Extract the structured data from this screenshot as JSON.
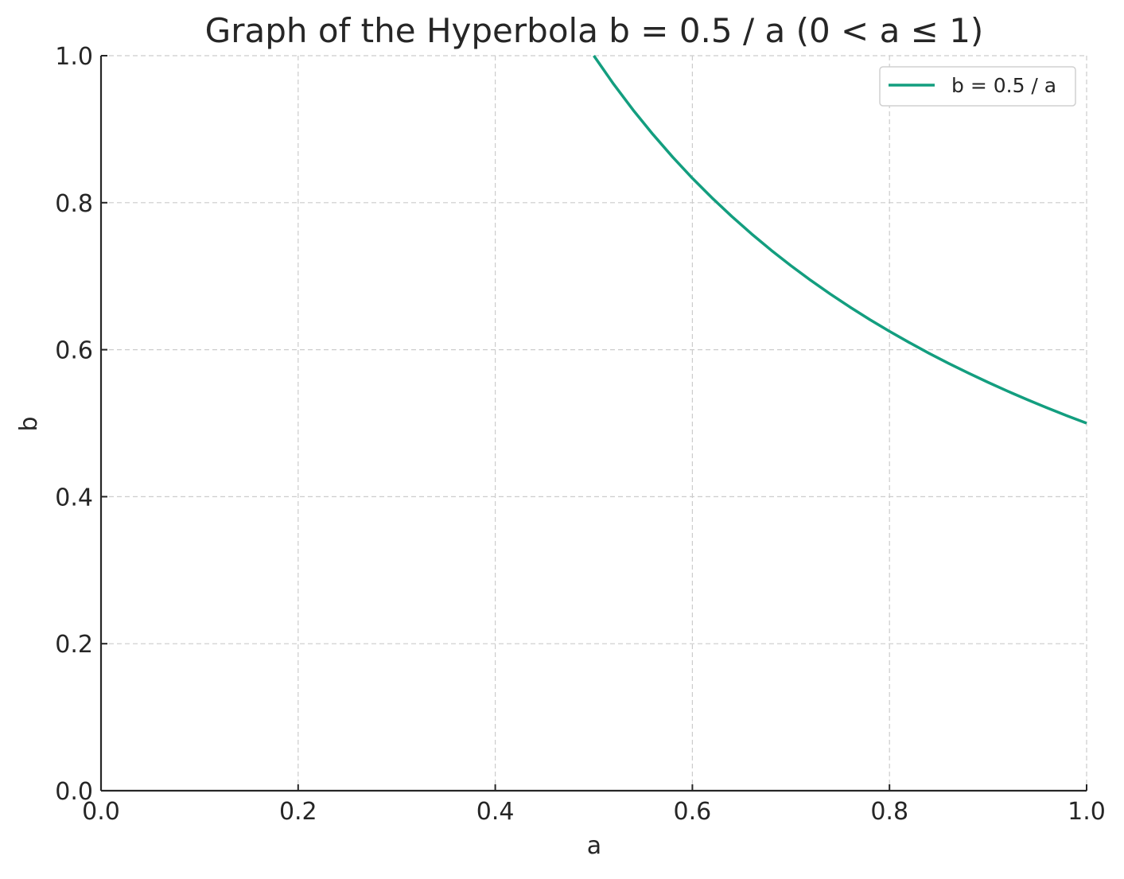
{
  "chart_data": {
    "type": "line",
    "title": "Graph of the Hyperbola b = 0.5 / a (0 < a ≤ 1)",
    "xlabel": "a",
    "ylabel": "b",
    "xlim": [
      0.0,
      1.0
    ],
    "ylim": [
      0.0,
      1.0
    ],
    "xticks": [
      0.0,
      0.2,
      0.4,
      0.6,
      0.8,
      1.0
    ],
    "yticks": [
      0.0,
      0.2,
      0.4,
      0.6,
      0.8,
      1.0
    ],
    "x_tick_labels": [
      "0.0",
      "0.2",
      "0.4",
      "0.6",
      "0.8",
      "1.0"
    ],
    "y_tick_labels": [
      "0.0",
      "0.2",
      "0.4",
      "0.6",
      "0.8",
      "1.0"
    ],
    "grid": true,
    "legend_position": "top-right",
    "series": [
      {
        "name": "b = 0.5 / a",
        "color": "#139e7f",
        "x": [
          0.5,
          0.52,
          0.54,
          0.56,
          0.58,
          0.6,
          0.62,
          0.64,
          0.66,
          0.68,
          0.7,
          0.72,
          0.74,
          0.76,
          0.78,
          0.8,
          0.82,
          0.84,
          0.86,
          0.88,
          0.9,
          0.92,
          0.94,
          0.96,
          0.98,
          1.0
        ],
        "y": [
          1.0,
          0.9615,
          0.9259,
          0.8929,
          0.8621,
          0.8333,
          0.8065,
          0.7813,
          0.7576,
          0.7353,
          0.7143,
          0.6944,
          0.6757,
          0.6579,
          0.641,
          0.625,
          0.6098,
          0.5952,
          0.5814,
          0.5682,
          0.5556,
          0.5435,
          0.5319,
          0.5208,
          0.5102,
          0.5
        ]
      }
    ]
  }
}
